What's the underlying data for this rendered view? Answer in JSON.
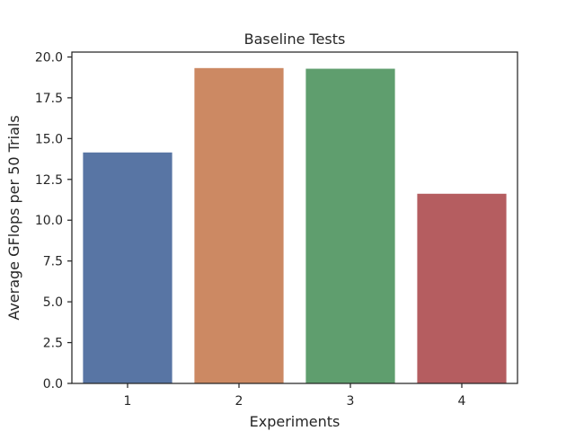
{
  "chart_data": {
    "type": "bar",
    "title": "Baseline Tests",
    "xlabel": "Experiments",
    "ylabel": "Average GFlops per 50 Trials",
    "categories": [
      "1",
      "2",
      "3",
      "4"
    ],
    "values": [
      14.15,
      19.32,
      19.28,
      11.62
    ],
    "colors": [
      "#5875a4",
      "#cc8963",
      "#5f9e6e",
      "#b55d60"
    ],
    "ylim": [
      0,
      20.3
    ],
    "yticks": [
      0.0,
      2.5,
      5.0,
      7.5,
      10.0,
      12.5,
      15.0,
      17.5,
      20.0
    ],
    "ytick_labels": [
      "0.0",
      "2.5",
      "5.0",
      "7.5",
      "10.0",
      "12.5",
      "15.0",
      "17.5",
      "20.0"
    ],
    "grid": false,
    "legend": "none"
  }
}
